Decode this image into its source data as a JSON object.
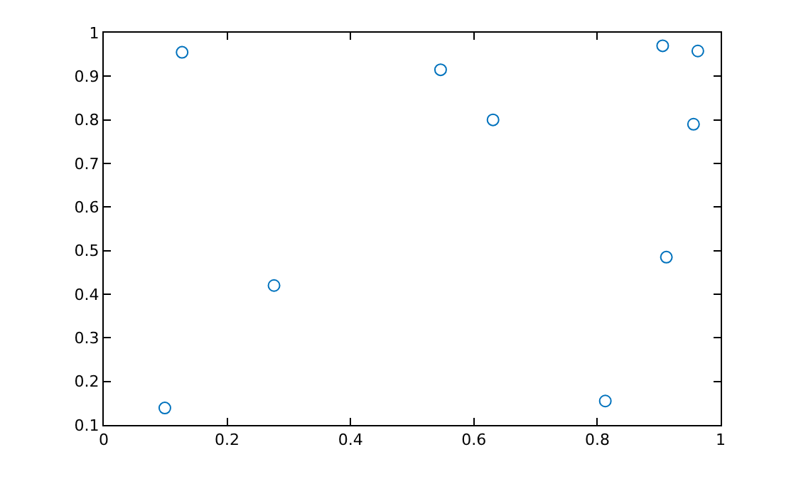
{
  "chart_data": {
    "type": "scatter",
    "marker": "circle",
    "x": [
      0.099,
      0.127,
      0.276,
      0.546,
      0.631,
      0.813,
      0.906,
      0.912,
      0.956,
      0.963
    ],
    "series": [
      {
        "color": "#0072bd",
        "values": [
          0.139,
          0.955,
          0.42,
          0.915,
          0.8,
          0.155,
          0.97,
          0.485,
          0.79,
          0.958
        ]
      }
    ],
    "xlim": [
      0,
      1
    ],
    "xticks": [
      0,
      0.2,
      0.4,
      0.6,
      0.8,
      1
    ],
    "ylim": [
      0.1,
      1
    ],
    "yticks": [
      0.1,
      0.2,
      0.3,
      0.4,
      0.5,
      0.6,
      0.7,
      0.8,
      0.9,
      1
    ]
  }
}
